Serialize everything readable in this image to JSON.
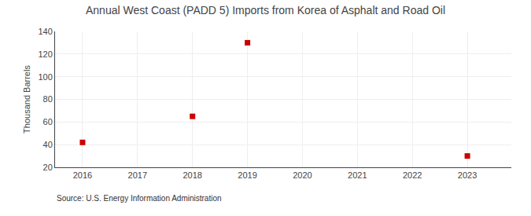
{
  "chart_data": {
    "type": "scatter",
    "title": "Annual West Coast (PADD 5) Imports from Korea of Asphalt and Road Oil",
    "ylabel": "Thousand Barrels",
    "annotations": [
      "Source: U.S. Energy Information Administration"
    ],
    "x": [
      2016,
      2018,
      2019,
      2023
    ],
    "values": [
      42,
      65,
      130,
      30
    ],
    "color": "#cc0000",
    "marker": "square",
    "xlim": [
      2015.5,
      2023.8
    ],
    "ylim": [
      20,
      140
    ],
    "xticks": [
      2016,
      2017,
      2018,
      2019,
      2020,
      2021,
      2022,
      2023
    ],
    "yticks": [
      20,
      40,
      60,
      80,
      100,
      120,
      140
    ],
    "grid": true
  }
}
